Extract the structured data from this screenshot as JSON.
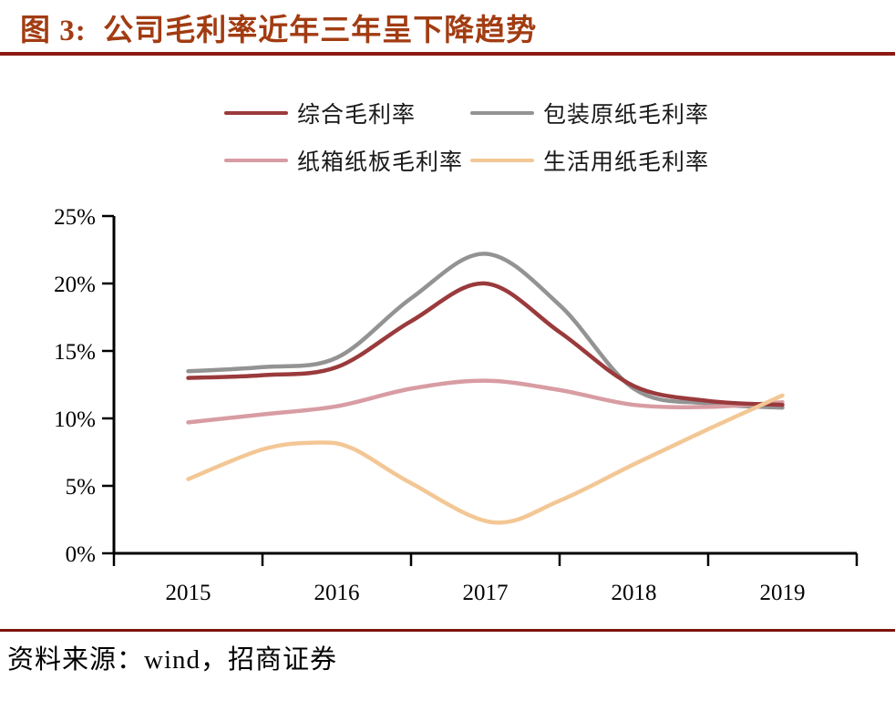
{
  "header": {
    "title": "图 3:  公司毛利率近年三年呈下降趋势"
  },
  "footer": {
    "source": "资料来源：wind，招商证券"
  },
  "colors": {
    "title_text": "#A23C12",
    "top_rule": "#8C1912",
    "bottom_rule": "#7E120C",
    "axis": "#000000"
  },
  "chart_data": {
    "type": "line",
    "title": "公司毛利率近年三年呈下降趋势",
    "xlabel": "",
    "ylabel": "",
    "grid": false,
    "legend_position": "top",
    "xlim": [
      2014.5,
      2019.5
    ],
    "ylim": [
      0,
      25
    ],
    "y_tick_values": [
      0,
      5,
      10,
      15,
      20,
      25
    ],
    "y_tick_labels": [
      "0%",
      "5%",
      "10%",
      "15%",
      "20%",
      "25%"
    ],
    "x_tick_values": [
      2015,
      2016,
      2017,
      2018,
      2019
    ],
    "x_tick_labels": [
      "2015",
      "2016",
      "2017",
      "2018",
      "2019"
    ],
    "series": [
      {
        "name": "综合毛利率",
        "color": "#9A3A3C",
        "values_by_year": {
          "2015": 13.0,
          "2016": 13.8,
          "2017": 20.0,
          "2018": 12.4,
          "2019": 11.0
        },
        "points": [
          [
            2015,
            13.0
          ],
          [
            2015.5,
            13.2
          ],
          [
            2016,
            13.8
          ],
          [
            2016.5,
            17.2
          ],
          [
            2017,
            20.0
          ],
          [
            2017.5,
            16.4
          ],
          [
            2018,
            12.4
          ],
          [
            2018.5,
            11.3
          ],
          [
            2019,
            11.0
          ]
        ]
      },
      {
        "name": "包装原纸毛利率",
        "color": "#939393",
        "values_by_year": {
          "2015": 13.5,
          "2016": 14.5,
          "2017": 22.2,
          "2018": 12.2,
          "2019": 10.8
        },
        "points": [
          [
            2015,
            13.5
          ],
          [
            2015.5,
            13.8
          ],
          [
            2016,
            14.5
          ],
          [
            2016.5,
            18.9
          ],
          [
            2017,
            22.2
          ],
          [
            2017.5,
            18.4
          ],
          [
            2018,
            12.2
          ],
          [
            2018.5,
            11.1
          ],
          [
            2019,
            10.8
          ]
        ]
      },
      {
        "name": "纸箱纸板毛利率",
        "color": "#D89CA3",
        "values_by_year": {
          "2015": 9.7,
          "2016": 10.9,
          "2017": 12.8,
          "2018": 11.0,
          "2019": 11.2
        },
        "points": [
          [
            2015,
            9.7
          ],
          [
            2015.5,
            10.3
          ],
          [
            2016,
            10.9
          ],
          [
            2016.5,
            12.2
          ],
          [
            2017,
            12.8
          ],
          [
            2017.5,
            12.1
          ],
          [
            2018,
            11.0
          ],
          [
            2018.5,
            10.85
          ],
          [
            2019,
            11.2
          ]
        ]
      },
      {
        "name": "生活用纸毛利率",
        "color": "#F3C795",
        "values_by_year": {
          "2015": 5.5,
          "2016": 8.0,
          "2017": 2.5,
          "2018": 6.6,
          "2019": 11.7
        },
        "points": [
          [
            2015,
            5.5
          ],
          [
            2015.5,
            7.7
          ],
          [
            2015.85,
            8.2
          ],
          [
            2016.1,
            7.8
          ],
          [
            2016.5,
            5.2
          ],
          [
            2017.05,
            2.3
          ],
          [
            2017.5,
            3.9
          ],
          [
            2018,
            6.6
          ],
          [
            2018.5,
            9.2
          ],
          [
            2019,
            11.7
          ]
        ]
      }
    ]
  }
}
